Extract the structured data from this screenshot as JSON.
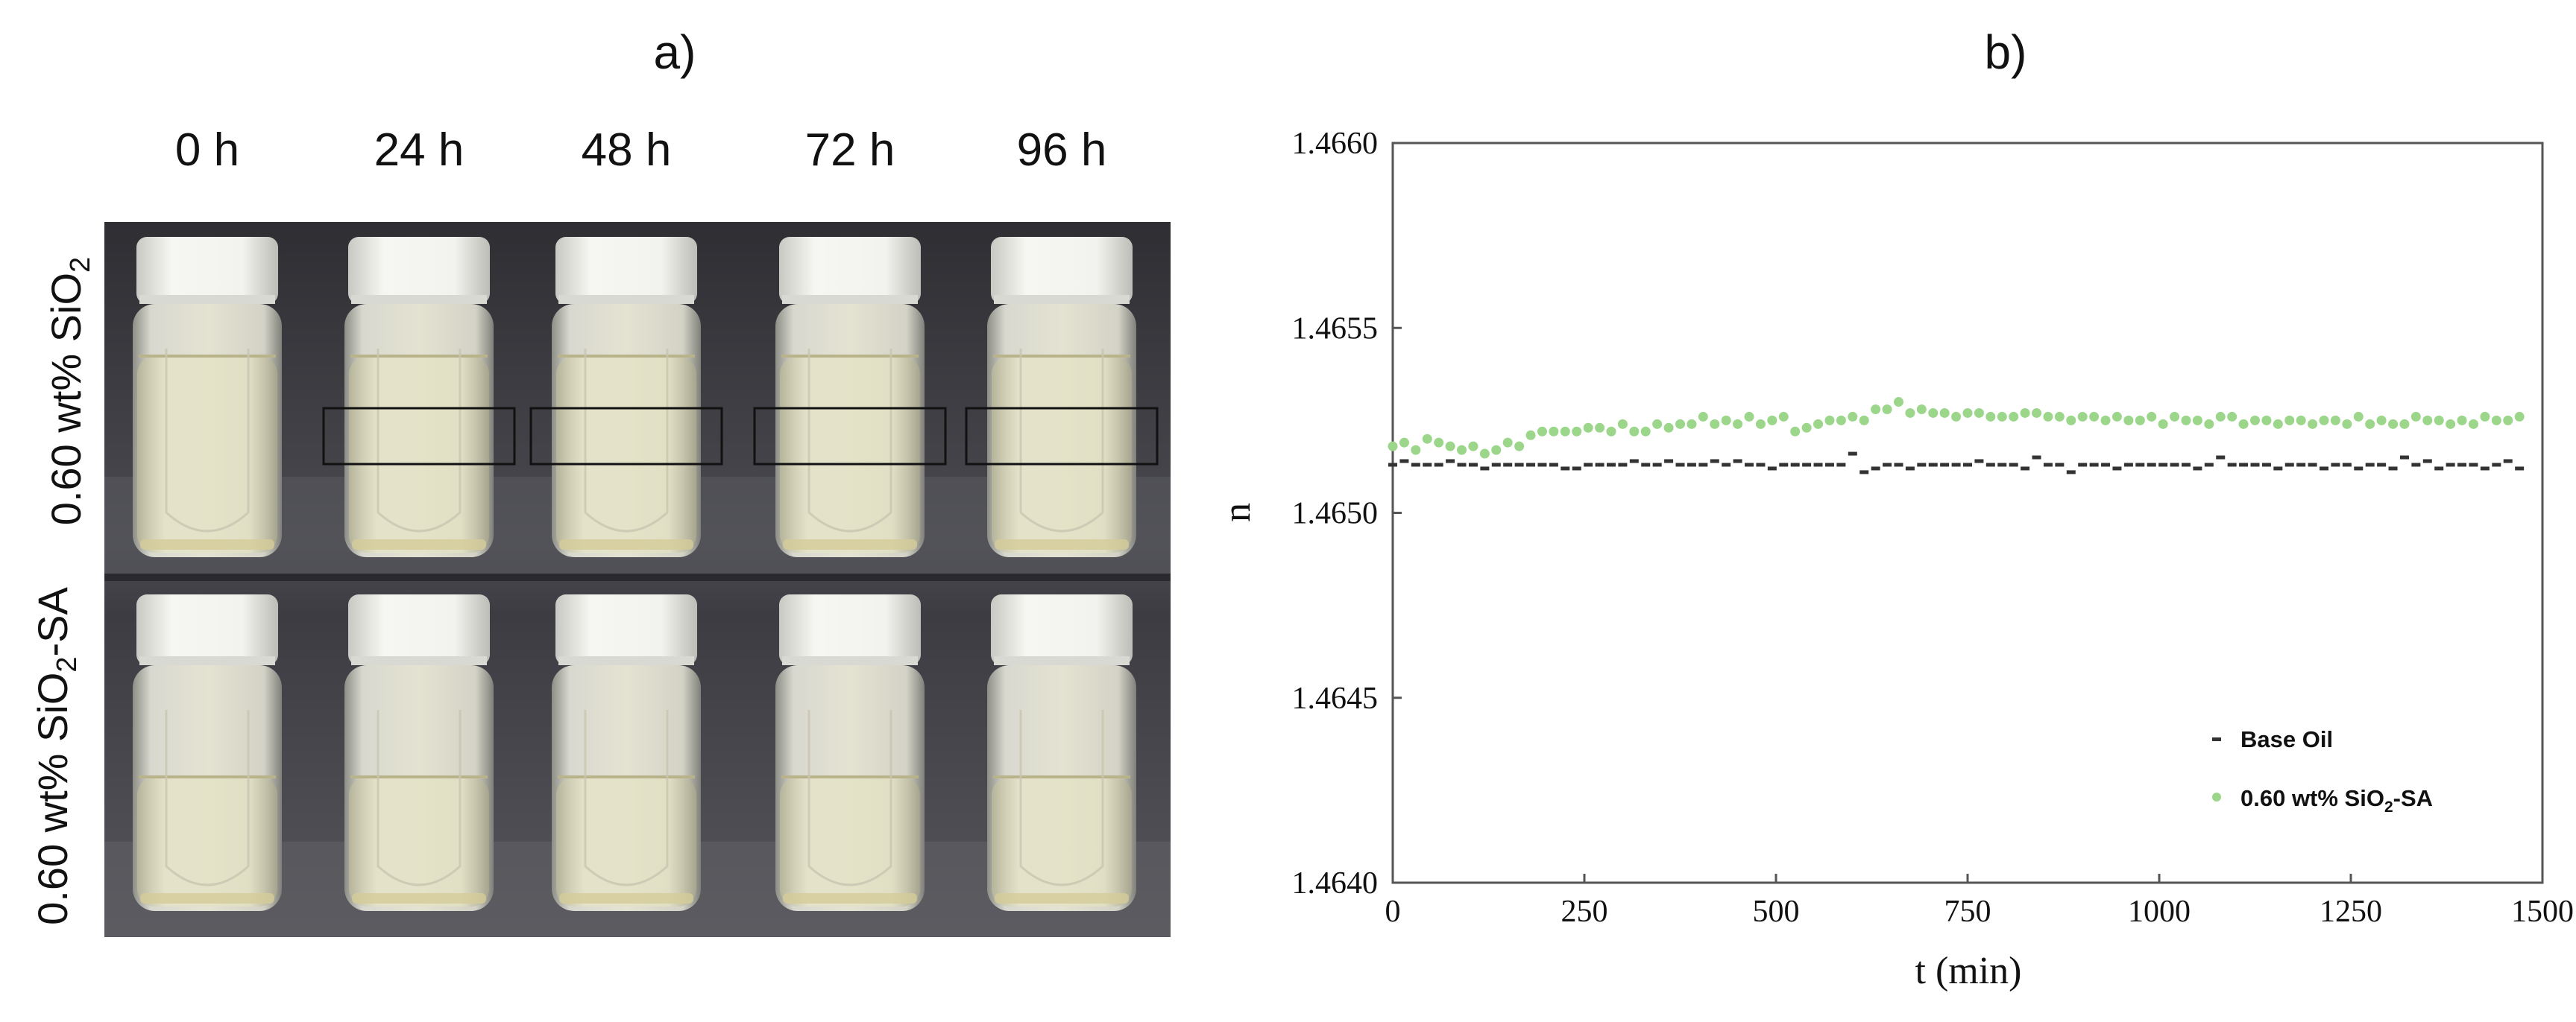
{
  "panel_a": {
    "label": "a)",
    "time_labels": [
      "0 h",
      "24 h",
      "48 h",
      "72 h",
      "96 h"
    ],
    "row_labels": {
      "top": {
        "main": "0.60 wt% SiO",
        "sub": "2",
        "suffix": ""
      },
      "bottom": {
        "main": "0.60 wt% SiO",
        "sub": "2",
        "suffix": "-SA"
      }
    },
    "colors": {
      "photo_background": "#3b3b40",
      "cap": "#f2f2ee",
      "liquid_top": "#e7e6c9",
      "liquid_bottom": "#ece8cf"
    }
  },
  "panel_b": {
    "label": "b)",
    "legend": {
      "series1_label": "Base Oil",
      "series2_prefix": "0.60 wt% SiO",
      "series2_sub": "2",
      "series2_suffix": "-SA"
    }
  },
  "chart_data": {
    "type": "scatter",
    "title": "",
    "xlabel": "t (min)",
    "ylabel": "n",
    "xlim": [
      0,
      1500
    ],
    "ylim": [
      1.464,
      1.466
    ],
    "xticks": [
      0,
      250,
      500,
      750,
      1000,
      1250,
      1500
    ],
    "yticks": [
      "1.4640",
      "1.4645",
      "1.4650",
      "1.4655",
      "1.4660"
    ],
    "grid": false,
    "legend_position": "bottom-right",
    "series": [
      {
        "name": "Base Oil",
        "marker": "dash",
        "color": "#333333",
        "x": [
          0,
          15,
          30,
          45,
          60,
          75,
          90,
          105,
          120,
          135,
          150,
          165,
          180,
          195,
          210,
          225,
          240,
          255,
          270,
          285,
          300,
          315,
          330,
          345,
          360,
          375,
          390,
          405,
          420,
          435,
          450,
          465,
          480,
          495,
          510,
          525,
          540,
          555,
          570,
          585,
          600,
          615,
          630,
          645,
          660,
          675,
          690,
          705,
          720,
          735,
          750,
          765,
          780,
          795,
          810,
          825,
          840,
          855,
          870,
          885,
          900,
          915,
          930,
          945,
          960,
          975,
          990,
          1005,
          1020,
          1035,
          1050,
          1065,
          1080,
          1095,
          1110,
          1125,
          1140,
          1155,
          1170,
          1185,
          1200,
          1215,
          1230,
          1245,
          1260,
          1275,
          1290,
          1305,
          1320,
          1335,
          1350,
          1365,
          1380,
          1395,
          1410,
          1425,
          1440,
          1455,
          1470
        ],
        "y": [
          1.46513,
          1.46514,
          1.46513,
          1.46513,
          1.46513,
          1.46514,
          1.46513,
          1.46513,
          1.46512,
          1.46513,
          1.46513,
          1.46513,
          1.46513,
          1.46513,
          1.46513,
          1.46512,
          1.46512,
          1.46513,
          1.46513,
          1.46513,
          1.46513,
          1.46514,
          1.46513,
          1.46513,
          1.46514,
          1.46513,
          1.46513,
          1.46513,
          1.46514,
          1.46513,
          1.46514,
          1.46513,
          1.46513,
          1.46512,
          1.46513,
          1.46513,
          1.46513,
          1.46513,
          1.46513,
          1.46513,
          1.46516,
          1.46511,
          1.46512,
          1.46513,
          1.46513,
          1.46512,
          1.46513,
          1.46513,
          1.46513,
          1.46513,
          1.46513,
          1.46514,
          1.46513,
          1.46513,
          1.46513,
          1.46512,
          1.46515,
          1.46513,
          1.46513,
          1.46511,
          1.46513,
          1.46513,
          1.46513,
          1.46512,
          1.46513,
          1.46513,
          1.46513,
          1.46513,
          1.46513,
          1.46513,
          1.46512,
          1.46513,
          1.46515,
          1.46513,
          1.46513,
          1.46513,
          1.46513,
          1.46512,
          1.46513,
          1.46513,
          1.46513,
          1.46512,
          1.46513,
          1.46513,
          1.46512,
          1.46513,
          1.46513,
          1.46512,
          1.46515,
          1.46513,
          1.46514,
          1.46512,
          1.46513,
          1.46513,
          1.46513,
          1.46512,
          1.46513,
          1.46514,
          1.46512
        ]
      },
      {
        "name": "0.60 wt% SiO2-SA",
        "marker": "circle",
        "color": "#9bd68a",
        "x": [
          0,
          15,
          30,
          45,
          60,
          75,
          90,
          105,
          120,
          135,
          150,
          165,
          180,
          195,
          210,
          225,
          240,
          255,
          270,
          285,
          300,
          315,
          330,
          345,
          360,
          375,
          390,
          405,
          420,
          435,
          450,
          465,
          480,
          495,
          510,
          525,
          540,
          555,
          570,
          585,
          600,
          615,
          630,
          645,
          660,
          675,
          690,
          705,
          720,
          735,
          750,
          765,
          780,
          795,
          810,
          825,
          840,
          855,
          870,
          885,
          900,
          915,
          930,
          945,
          960,
          975,
          990,
          1005,
          1020,
          1035,
          1050,
          1065,
          1080,
          1095,
          1110,
          1125,
          1140,
          1155,
          1170,
          1185,
          1200,
          1215,
          1230,
          1245,
          1260,
          1275,
          1290,
          1305,
          1320,
          1335,
          1350,
          1365,
          1380,
          1395,
          1410,
          1425,
          1440,
          1455,
          1470
        ],
        "y": [
          1.46518,
          1.46519,
          1.46517,
          1.4652,
          1.46519,
          1.46518,
          1.46517,
          1.46518,
          1.46516,
          1.46517,
          1.46519,
          1.46518,
          1.46521,
          1.46522,
          1.46522,
          1.46522,
          1.46522,
          1.46523,
          1.46523,
          1.46522,
          1.46524,
          1.46522,
          1.46522,
          1.46524,
          1.46523,
          1.46524,
          1.46524,
          1.46526,
          1.46524,
          1.46525,
          1.46524,
          1.46526,
          1.46524,
          1.46525,
          1.46526,
          1.46522,
          1.46523,
          1.46524,
          1.46525,
          1.46525,
          1.46526,
          1.46525,
          1.46528,
          1.46528,
          1.4653,
          1.46527,
          1.46528,
          1.46527,
          1.46527,
          1.46526,
          1.46527,
          1.46527,
          1.46526,
          1.46526,
          1.46526,
          1.46527,
          1.46527,
          1.46526,
          1.46526,
          1.46525,
          1.46526,
          1.46526,
          1.46525,
          1.46526,
          1.46525,
          1.46525,
          1.46526,
          1.46524,
          1.46526,
          1.46525,
          1.46525,
          1.46524,
          1.46526,
          1.46526,
          1.46524,
          1.46525,
          1.46525,
          1.46524,
          1.46525,
          1.46525,
          1.46524,
          1.46525,
          1.46525,
          1.46524,
          1.46526,
          1.46524,
          1.46525,
          1.46524,
          1.46524,
          1.46526,
          1.46525,
          1.46525,
          1.46524,
          1.46525,
          1.46524,
          1.46526,
          1.46525,
          1.46525,
          1.46526
        ]
      }
    ]
  }
}
